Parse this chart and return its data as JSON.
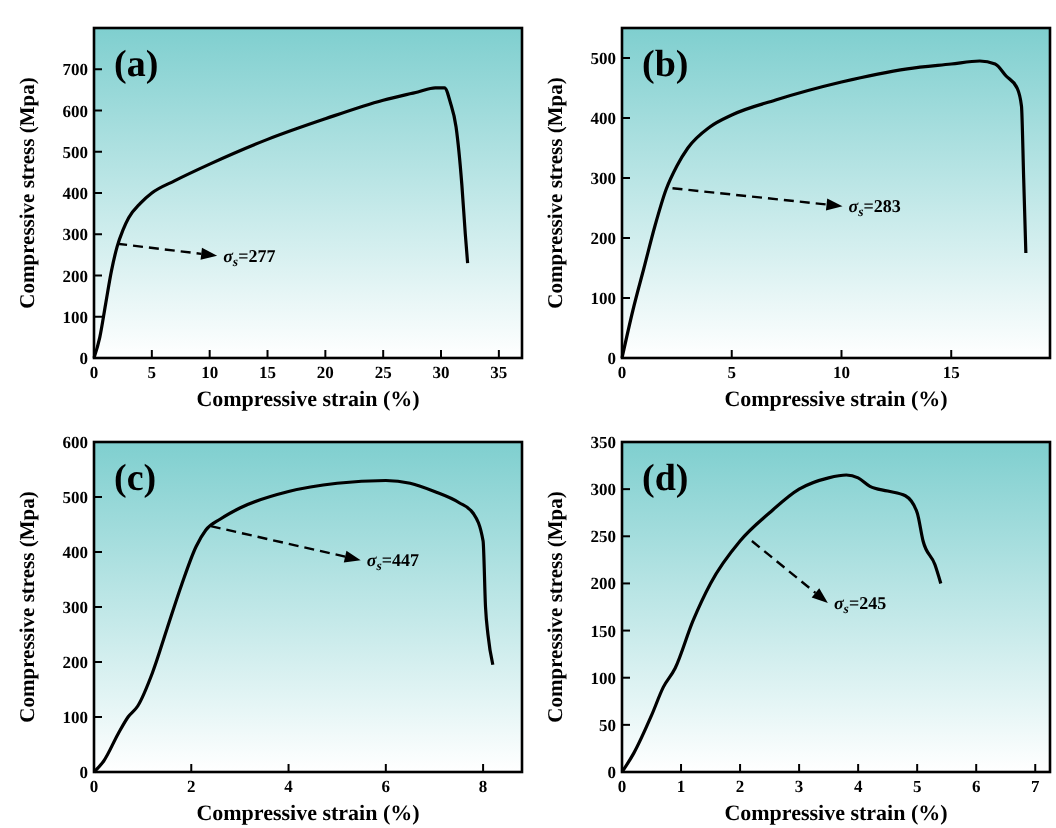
{
  "chart_data": [
    {
      "type": "line",
      "title": "(a)",
      "xlabel": "Compressive strain (%)",
      "ylabel": "Compressive stress (Mpa)",
      "xlim": [
        0,
        37
      ],
      "xticks": [
        0,
        5,
        10,
        15,
        20,
        25,
        30,
        35
      ],
      "ylim": [
        0,
        800
      ],
      "yticks": [
        0,
        100,
        200,
        300,
        400,
        500,
        600,
        700
      ],
      "grid": false,
      "marker": "none",
      "line_style": "solid",
      "series": [
        {
          "color": "#000000",
          "x": [
            0,
            0.5,
            1,
            1.5,
            2,
            2.5,
            3,
            4,
            5,
            7,
            10,
            15,
            20,
            25,
            28,
            29.5,
            30.3,
            30.8,
            31.3,
            31.8,
            32.1,
            32.3
          ],
          "values": [
            0,
            50,
            130,
            210,
            270,
            310,
            340,
            375,
            400,
            430,
            470,
            530,
            580,
            625,
            645,
            655,
            655,
            620,
            560,
            420,
            300,
            230
          ]
        }
      ],
      "annotations": [
        {
          "text": "σ$_{s}$=277",
          "x": 2,
          "y": 277
        }
      ]
    },
    {
      "type": "line",
      "title": "(b)",
      "xlabel": "Compressive strain (%)",
      "ylabel": "Compressive stress (Mpa)",
      "xlim": [
        0,
        19.5
      ],
      "xticks": [
        0,
        5,
        10,
        15
      ],
      "ylim": [
        0,
        550
      ],
      "yticks": [
        0,
        100,
        200,
        300,
        400,
        500
      ],
      "grid": false,
      "marker": "none",
      "line_style": "solid",
      "series": [
        {
          "color": "#000000",
          "x": [
            0,
            0.5,
            1,
            1.5,
            2,
            2.5,
            3,
            4,
            5,
            7,
            10,
            13,
            15,
            16.3,
            17,
            17.5,
            18,
            18.2,
            18.3,
            18.4
          ],
          "values": [
            0,
            80,
            150,
            220,
            280,
            320,
            350,
            385,
            405,
            430,
            460,
            482,
            490,
            495,
            490,
            470,
            450,
            420,
            300,
            175
          ]
        }
      ],
      "annotations": [
        {
          "text": "σ$_{s}$=283",
          "x": 2.3,
          "y": 283
        }
      ]
    },
    {
      "type": "line",
      "title": "(c)",
      "xlabel": "Compressive strain (%)",
      "ylabel": "Compressive stress (Mpa)",
      "xlim": [
        0,
        8.8
      ],
      "xticks": [
        0,
        2,
        4,
        6,
        8
      ],
      "ylim": [
        0,
        600
      ],
      "yticks": [
        0,
        100,
        200,
        300,
        400,
        500,
        600
      ],
      "grid": false,
      "marker": "none",
      "line_style": "solid",
      "series": [
        {
          "color": "#000000",
          "x": [
            0,
            0.2,
            0.5,
            0.7,
            0.9,
            1.2,
            1.5,
            1.8,
            2.1,
            2.3,
            2.6,
            3,
            4,
            5,
            6,
            6.5,
            7,
            7.5,
            7.8,
            8,
            8.05,
            8.1,
            8.2
          ],
          "values": [
            0,
            20,
            70,
            100,
            120,
            180,
            260,
            340,
            410,
            440,
            460,
            480,
            510,
            525,
            530,
            525,
            510,
            490,
            470,
            420,
            300,
            250,
            195
          ]
        }
      ],
      "annotations": [
        {
          "text": "σ$_{s}$=447",
          "x": 2.4,
          "y": 447
        }
      ]
    },
    {
      "type": "line",
      "title": "(d)",
      "xlabel": "Compressive strain (%)",
      "ylabel": "Compressive stress (Mpa)",
      "xlim": [
        0,
        7.25
      ],
      "xticks": [
        0,
        1,
        2,
        3,
        4,
        5,
        6,
        7
      ],
      "ylim": [
        0,
        350
      ],
      "yticks": [
        0,
        50,
        100,
        150,
        200,
        250,
        300,
        350
      ],
      "grid": false,
      "marker": "none",
      "line_style": "solid",
      "series": [
        {
          "color": "#000000",
          "x": [
            0,
            0.2,
            0.5,
            0.7,
            0.9,
            1.2,
            1.5,
            2,
            2.5,
            3,
            3.5,
            3.8,
            4,
            4.2,
            4.5,
            4.8,
            5,
            5.1,
            5.3,
            5.4
          ],
          "values": [
            0,
            20,
            60,
            90,
            110,
            160,
            200,
            245,
            275,
            300,
            312,
            315,
            312,
            303,
            298,
            293,
            275,
            245,
            220,
            200
          ]
        }
      ],
      "annotations": [
        {
          "text": "σ$_{s}$=245",
          "x": 2.2,
          "y": 245
        }
      ]
    }
  ]
}
